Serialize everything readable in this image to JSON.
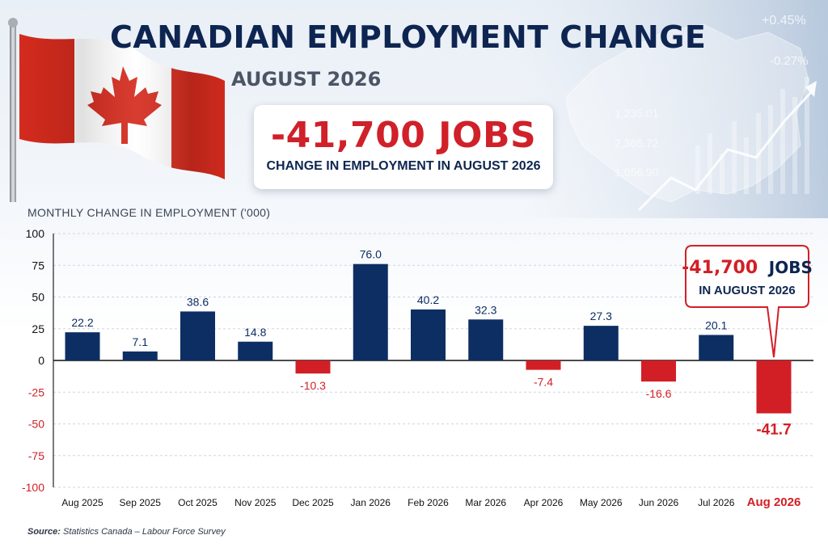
{
  "header": {
    "title": "CANADIAN EMPLOYMENT CHANGE",
    "subtitle": "AUGUST 2026",
    "headline_value": "-41,700 JOBS",
    "headline_caption": "CHANGE IN EMPLOYMENT IN AUGUST 2026"
  },
  "background_numbers": [
    "+0.45%",
    "-0.27%",
    "1,235.01",
    "2,365.72",
    "1,056.90"
  ],
  "callout": {
    "line1_value": "-41,700",
    "line1_unit": "JOBS",
    "line2": "IN AUGUST 2026"
  },
  "source": {
    "label": "Source:",
    "text": "Statistics Canada – Labour Force Survey"
  },
  "colors": {
    "positive": "#0d2e63",
    "negative": "#d21f26",
    "title": "#0d2550",
    "flag_red": "#d52b1e"
  },
  "chart_data": {
    "type": "bar",
    "ylabel": "MONTHLY CHANGE IN EMPLOYMENT ('000)",
    "ylim": [
      -100,
      100
    ],
    "yticks": [
      100,
      75,
      50,
      25,
      0,
      -25,
      -50,
      -75,
      -100
    ],
    "grid": true,
    "categories": [
      "Aug 2025",
      "Sep 2025",
      "Oct 2025",
      "Nov 2025",
      "Dec 2025",
      "Jan 2026",
      "Feb 2026",
      "Mar 2026",
      "Apr 2026",
      "May 2026",
      "Jun 2026",
      "Jul 2026",
      "Aug 2026"
    ],
    "values": [
      22.2,
      7.1,
      38.6,
      14.8,
      -10.3,
      76.0,
      40.2,
      32.3,
      -7.4,
      27.3,
      -16.6,
      20.1,
      -41.7
    ],
    "labels": [
      "22.2",
      "7.1",
      "38.6",
      "14.8",
      "-10.3",
      "76.0",
      "40.2",
      "32.3",
      "-7.4",
      "27.3",
      "-16.6",
      "20.1",
      "-41.7"
    ]
  }
}
